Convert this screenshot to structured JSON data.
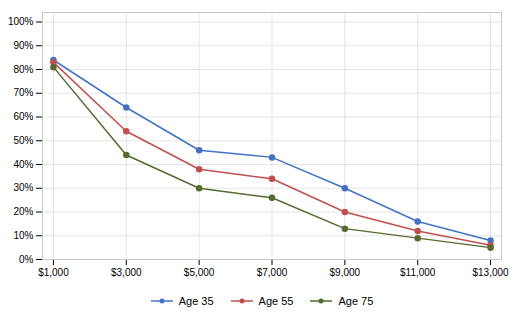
{
  "chart_data": {
    "type": "line",
    "x": [
      1000,
      3000,
      5000,
      7000,
      9000,
      11000,
      13000
    ],
    "series": [
      {
        "name": "Age 35",
        "color": "#4472C4",
        "values": [
          0.84,
          0.64,
          0.46,
          0.43,
          0.3,
          0.16,
          0.08
        ]
      },
      {
        "name": "Age 55",
        "color": "#C0504D",
        "values": [
          0.83,
          0.54,
          0.38,
          0.34,
          0.2,
          0.12,
          0.06
        ]
      },
      {
        "name": "Age 75",
        "color": "#556B2F",
        "values": [
          0.81,
          0.44,
          0.3,
          0.26,
          0.13,
          0.09,
          0.05
        ]
      }
    ],
    "xlim": [
      700,
      13300
    ],
    "xticks": [
      {
        "value": 1000,
        "label": "$1,000"
      },
      {
        "value": 3000,
        "label": "$3,000"
      },
      {
        "value": 5000,
        "label": "$5,000"
      },
      {
        "value": 7000,
        "label": "$7,000"
      },
      {
        "value": 9000,
        "label": "$9,000"
      },
      {
        "value": 11000,
        "label": "$11,000"
      },
      {
        "value": 13000,
        "label": "$13,000"
      }
    ],
    "ylim": [
      0,
      1.04
    ],
    "yticks": [
      {
        "value": 0,
        "label": "0%"
      },
      {
        "value": 0.1,
        "label": "10%"
      },
      {
        "value": 0.2,
        "label": "20%"
      },
      {
        "value": 0.3,
        "label": "30%"
      },
      {
        "value": 0.4,
        "label": "40%"
      },
      {
        "value": 0.5,
        "label": "50%"
      },
      {
        "value": 0.6,
        "label": "60%"
      },
      {
        "value": 0.7,
        "label": "70%"
      },
      {
        "value": 0.8,
        "label": "80%"
      },
      {
        "value": 0.9,
        "label": "90%"
      },
      {
        "value": 1.0,
        "label": "100%"
      }
    ],
    "grid": true,
    "marker": "o",
    "legend": "bottom"
  }
}
